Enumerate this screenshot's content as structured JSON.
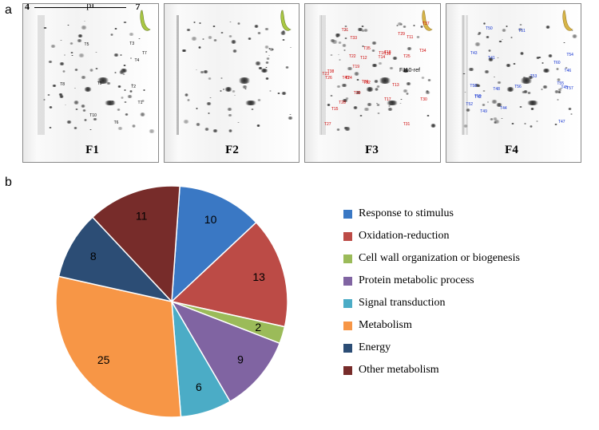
{
  "panel_labels": {
    "a": "a",
    "b": "b"
  },
  "gels": {
    "labels": [
      "F1",
      "F2",
      "F3",
      "F4"
    ],
    "pi_axis": {
      "left": "4",
      "right": "7",
      "label": "pI"
    },
    "banana_colors": {
      "green": "#a9c843",
      "yellow": "#d7b547"
    }
  },
  "pie": {
    "type": "pie",
    "background_color": "#ffffff",
    "label_fontsize": 14,
    "slices": [
      {
        "name": "Response to stimulus",
        "value": 10,
        "color": "#3a78c4"
      },
      {
        "name": "Oxidation-reduction",
        "value": 13,
        "color": "#bc4b46"
      },
      {
        "name": "Cell wall organization or biogenesis",
        "value": 2,
        "color": "#9bbb59"
      },
      {
        "name": "Protein metabolic process",
        "value": 9,
        "color": "#8064a2"
      },
      {
        "name": "Signal transduction",
        "value": 6,
        "color": "#4bacc6"
      },
      {
        "name": "Metabolism",
        "value": 25,
        "color": "#f79646"
      },
      {
        "name": "Energy",
        "value": 8,
        "color": "#2c4d75"
      },
      {
        "name": "Other metabolism",
        "value": 11,
        "color": "#772c2a"
      }
    ]
  },
  "sample_annotations": {
    "f1_black": [
      "T1",
      "T2",
      "T3",
      "T4",
      "T5",
      "T6",
      "T7",
      "T8",
      "T9",
      "T10"
    ],
    "f3_red": [
      "T11",
      "T12",
      "T13",
      "T14",
      "T15",
      "T16",
      "T17",
      "T18",
      "T19",
      "T20",
      "T21",
      "T22",
      "T23",
      "T24",
      "T25",
      "T26",
      "T27",
      "T28",
      "T29",
      "T30",
      "T31",
      "T32",
      "T33",
      "T34",
      "T35",
      "T36",
      "T37",
      "T38",
      "T39",
      "T40"
    ],
    "f3_ref": "F110-ref",
    "f4_blue": [
      "T41",
      "T42",
      "T43",
      "T44",
      "T45",
      "T46",
      "T47",
      "T48",
      "T49",
      "T50",
      "T51",
      "T52",
      "T53",
      "T54",
      "T55",
      "T56",
      "T57",
      "T58",
      "T59",
      "T60"
    ]
  }
}
